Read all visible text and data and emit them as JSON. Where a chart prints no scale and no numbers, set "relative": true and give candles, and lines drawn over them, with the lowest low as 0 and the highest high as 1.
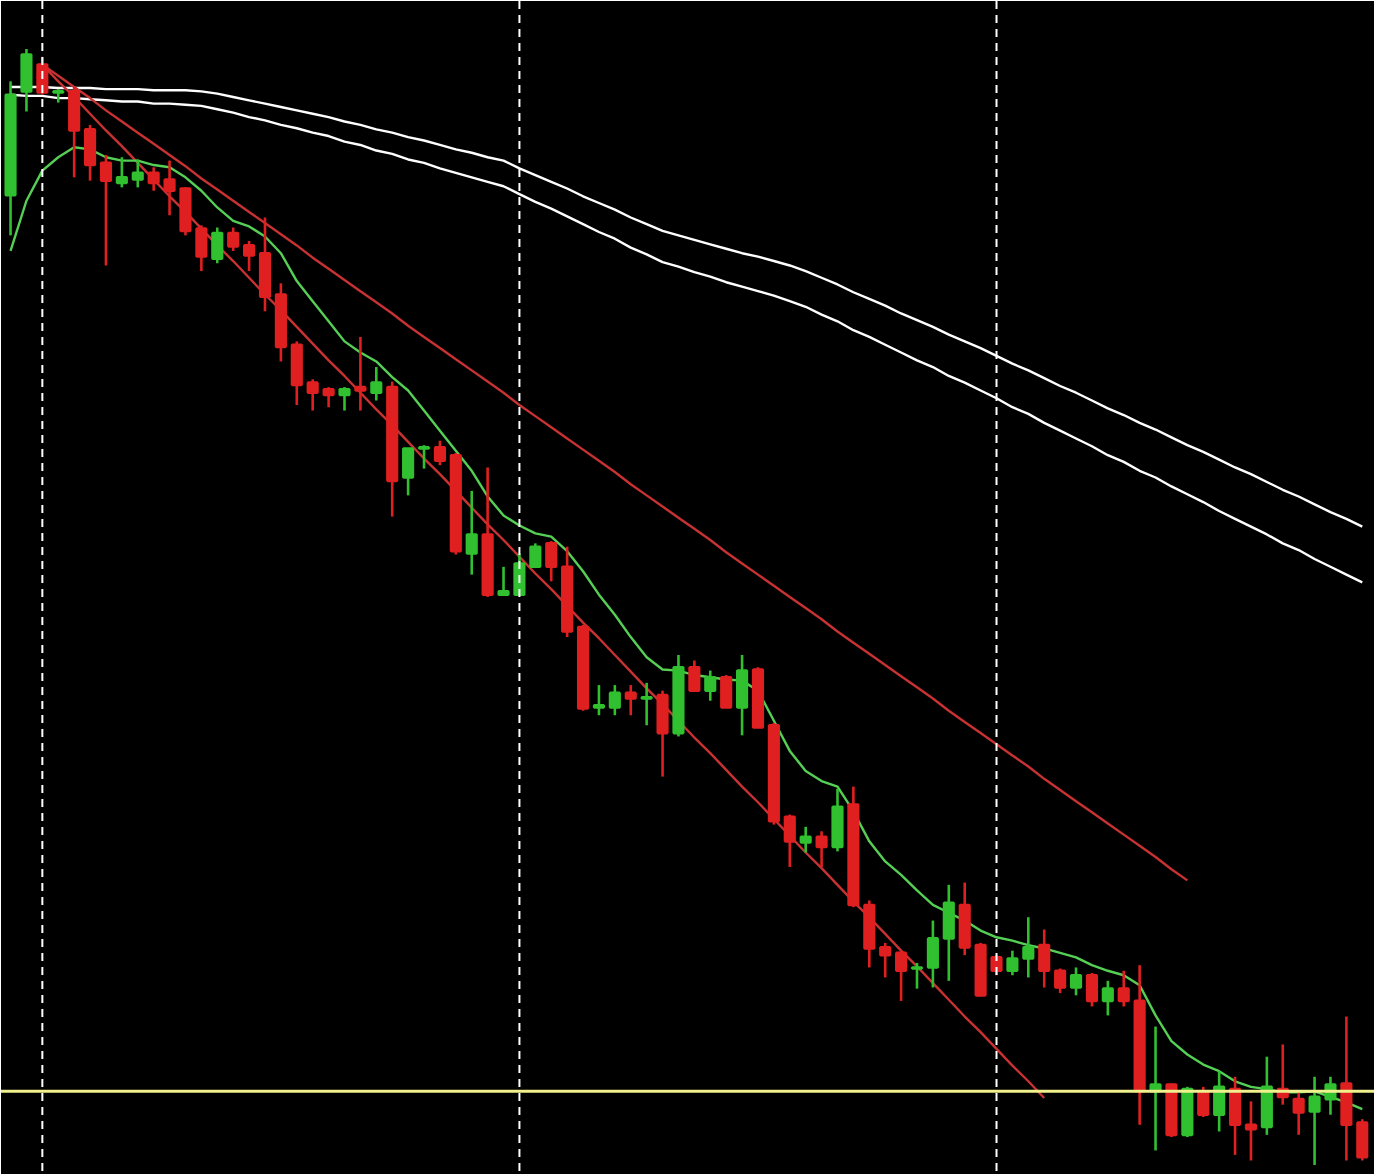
{
  "chart_data": {
    "type": "candlestick",
    "relative": true,
    "grid": "x",
    "categories": [
      null,
      null,
      null,
      null,
      null,
      null,
      null,
      null,
      null,
      null,
      null,
      null,
      null,
      null,
      null,
      null,
      null,
      null,
      null,
      null,
      null,
      null,
      null,
      null,
      null,
      null,
      null,
      null,
      null,
      null,
      null,
      null,
      null,
      null,
      null,
      null,
      null,
      null,
      null,
      null,
      null,
      null,
      null,
      null,
      null,
      null,
      null,
      null,
      null,
      null,
      null,
      null,
      null,
      null,
      null,
      null,
      null,
      null,
      null,
      null,
      null,
      null,
      null,
      null,
      null,
      null,
      null,
      null,
      null,
      null,
      null,
      null,
      null,
      null,
      null,
      null,
      null,
      null,
      null,
      null,
      null,
      null,
      null,
      null,
      null,
      null
    ],
    "ohlc": [
      [
        0.869,
        0.971,
        0.833,
        0.959
      ],
      [
        0.962,
        1,
        0.944,
        0.995
      ],
      [
        0.986,
        0.993,
        0.959,
        0.961
      ],
      [
        0.961,
        0.964,
        0.952,
        0.962
      ],
      [
        0.962,
        0.966,
        0.885,
        0.927
      ],
      [
        0.928,
        0.932,
        0.882,
        0.896
      ],
      [
        0.898,
        0.905,
        0.806,
        0.882
      ],
      [
        0.88,
        0.903,
        0.876,
        0.885
      ],
      [
        0.883,
        0.901,
        0.876,
        0.889
      ],
      [
        0.889,
        0.894,
        0.873,
        0.88
      ],
      [
        0.883,
        0.9,
        0.851,
        0.873
      ],
      [
        0.875,
        0.876,
        0.833,
        0.837
      ],
      [
        0.839,
        0.842,
        0.801,
        0.814
      ],
      [
        0.812,
        0.84,
        0.808,
        0.835
      ],
      [
        0.835,
        0.84,
        0.819,
        0.823
      ],
      [
        0.824,
        0.828,
        0.801,
        0.815
      ],
      [
        0.817,
        0.849,
        0.765,
        0.778
      ],
      [
        0.78,
        0.79,
        0.72,
        0.733
      ],
      [
        0.735,
        0.738,
        0.681,
        0.699
      ],
      [
        0.701,
        0.704,
        0.676,
        0.692
      ],
      [
        0.695,
        0.697,
        0.679,
        0.69
      ],
      [
        0.69,
        0.697,
        0.676,
        0.695
      ],
      [
        0.697,
        0.742,
        0.676,
        0.694
      ],
      [
        0.692,
        0.715,
        0.685,
        0.701
      ],
      [
        0.697,
        0.702,
        0.581,
        0.613
      ],
      [
        0.616,
        0.642,
        0.6,
        0.642
      ],
      [
        0.642,
        0.645,
        0.624,
        0.643
      ],
      [
        0.643,
        0.649,
        0.627,
        0.631
      ],
      [
        0.636,
        0.638,
        0.547,
        0.55
      ],
      [
        0.548,
        0.604,
        0.529,
        0.565
      ],
      [
        0.565,
        0.625,
        0.509,
        0.511
      ],
      [
        0.511,
        0.536,
        0.511,
        0.514
      ],
      [
        0.511,
        0.548,
        0.511,
        0.539
      ],
      [
        0.536,
        0.557,
        0.536,
        0.554
      ],
      [
        0.557,
        0.559,
        0.523,
        0.536
      ],
      [
        0.536,
        0.554,
        0.473,
        0.478
      ],
      [
        0.482,
        0.484,
        0.407,
        0.409
      ],
      [
        0.41,
        0.43,
        0.403,
        0.412
      ],
      [
        0.41,
        0.43,
        0.403,
        0.423
      ],
      [
        0.423,
        0.43,
        0.403,
        0.418
      ],
      [
        0.418,
        0.432,
        0.394,
        0.419
      ],
      [
        0.421,
        0.425,
        0.348,
        0.387
      ],
      [
        0.387,
        0.457,
        0.384,
        0.446
      ],
      [
        0.446,
        0.452,
        0.425,
        0.425
      ],
      [
        0.425,
        0.443,
        0.416,
        0.437
      ],
      [
        0.437,
        0.439,
        0.41,
        0.41
      ],
      [
        0.41,
        0.457,
        0.385,
        0.443
      ],
      [
        0.444,
        0.446,
        0.392,
        0.392
      ],
      [
        0.394,
        0.396,
        0.305,
        0.308
      ],
      [
        0.312,
        0.314,
        0.267,
        0.29
      ],
      [
        0.289,
        0.303,
        0.28,
        0.294
      ],
      [
        0.294,
        0.299,
        0.267,
        0.285
      ],
      [
        0.285,
        0.337,
        0.281,
        0.321
      ],
      [
        0.323,
        0.339,
        0.231,
        0.233
      ],
      [
        0.233,
        0.237,
        0.177,
        0.194
      ],
      [
        0.195,
        0.199,
        0.168,
        0.188
      ],
      [
        0.19,
        0.192,
        0.147,
        0.174
      ],
      [
        0.176,
        0.181,
        0.158,
        0.177
      ],
      [
        0.177,
        0.219,
        0.159,
        0.203
      ],
      [
        0.203,
        0.251,
        0.165,
        0.235
      ],
      [
        0.233,
        0.253,
        0.188,
        0.195
      ],
      [
        0.197,
        0.199,
        0.151,
        0.152
      ],
      [
        0.186,
        0.188,
        0.17,
        0.174
      ],
      [
        0.174,
        0.192,
        0.17,
        0.185
      ],
      [
        0.185,
        0.222,
        0.168,
        0.195
      ],
      [
        0.197,
        0.211,
        0.159,
        0.174
      ],
      [
        0.174,
        0.176,
        0.154,
        0.159
      ],
      [
        0.159,
        0.177,
        0.152,
        0.17
      ],
      [
        0.17,
        0.172,
        0.142,
        0.147
      ],
      [
        0.147,
        0.165,
        0.134,
        0.158
      ],
      [
        0.158,
        0.174,
        0.142,
        0.147
      ],
      [
        0.147,
        0.179,
        0.036,
        0.066
      ],
      [
        0.066,
        0.124,
        0.013,
        0.072
      ],
      [
        0.072,
        0.073,
        0.025,
        0.027
      ],
      [
        0.027,
        0.07,
        0.025,
        0.068
      ],
      [
        0.066,
        0.07,
        0.043,
        0.045
      ],
      [
        0.045,
        0.084,
        0.03,
        0.07
      ],
      [
        0.068,
        0.079,
        0.009,
        0.036
      ],
      [
        0.036,
        0.057,
        0.004,
        0.032
      ],
      [
        0.034,
        0.097,
        0.027,
        0.07
      ],
      [
        0.068,
        0.108,
        0.054,
        0.061
      ],
      [
        0.059,
        0.066,
        0.027,
        0.047
      ],
      [
        0.048,
        0.079,
        0,
        0.061
      ],
      [
        0.059,
        0.079,
        0.045,
        0.072
      ],
      [
        0.073,
        0.133,
        0.004,
        0.036
      ],
      [
        0.038,
        0.041,
        0.004,
        0.007
      ]
    ],
    "colors": [
      "#30c030",
      "#30c030",
      "#e02020",
      "#30c030",
      "#e02020",
      "#e02020",
      "#e02020",
      "#30c030",
      "#30c030",
      "#e02020",
      "#e02020",
      "#e02020",
      "#e02020",
      "#30c030",
      "#e02020",
      "#e02020",
      "#e02020",
      "#e02020",
      "#e02020",
      "#e02020",
      "#e02020",
      "#30c030",
      "#e02020",
      "#30c030",
      "#e02020",
      "#30c030",
      "#30c030",
      "#e02020",
      "#e02020",
      "#30c030",
      "#e02020",
      "#30c030",
      "#30c030",
      "#30c030",
      "#e02020",
      "#e02020",
      "#e02020",
      "#30c030",
      "#30c030",
      "#e02020",
      "#30c030",
      "#e02020",
      "#30c030",
      "#e02020",
      "#30c030",
      "#e02020",
      "#30c030",
      "#e02020",
      "#e02020",
      "#e02020",
      "#30c030",
      "#e02020",
      "#30c030",
      "#e02020",
      "#e02020",
      "#e02020",
      "#e02020",
      "#30c030",
      "#30c030",
      "#30c030",
      "#e02020",
      "#e02020",
      "#e02020",
      "#30c030",
      "#30c030",
      "#e02020",
      "#e02020",
      "#30c030",
      "#e02020",
      "#30c030",
      "#e02020",
      "#e02020",
      "#30c030",
      "#e02020",
      "#30c030",
      "#e02020",
      "#30c030",
      "#e02020",
      "#e02020",
      "#30c030",
      "#e02020",
      "#e02020",
      "#30c030",
      "#30c030",
      "#e02020",
      "#e02020"
    ],
    "series": [
      {
        "type": "line",
        "color": "#ffffff",
        "values": [
          0.966,
          0.966,
          0.966,
          0.965,
          0.965,
          0.965,
          0.964,
          0.964,
          0.964,
          0.963,
          0.963,
          0.963,
          0.962,
          0.96,
          0.957,
          0.954,
          0.951,
          0.948,
          0.945,
          0.942,
          0.939,
          0.935,
          0.932,
          0.928,
          0.925,
          0.921,
          0.918,
          0.914,
          0.91,
          0.907,
          0.903,
          0.9,
          0.893,
          0.887,
          0.881,
          0.875,
          0.868,
          0.862,
          0.856,
          0.849,
          0.843,
          0.837,
          0.833,
          0.829,
          0.825,
          0.821,
          0.817,
          0.814,
          0.81,
          0.806,
          0.801,
          0.795,
          0.789,
          0.782,
          0.776,
          0.77,
          0.763,
          0.757,
          0.751,
          0.744,
          0.738,
          0.732,
          0.725,
          0.718,
          0.712,
          0.705,
          0.698,
          0.692,
          0.685,
          0.678,
          0.672,
          0.665,
          0.659,
          0.652,
          0.645,
          0.639,
          0.632,
          0.625,
          0.619,
          0.612,
          0.605,
          0.599,
          0.592,
          0.585,
          0.579,
          0.572
        ]
      },
      {
        "type": "line",
        "color": "#ffffff",
        "values": [
          0.959,
          0.958,
          0.958,
          0.956,
          0.956,
          0.955,
          0.954,
          0.953,
          0.953,
          0.951,
          0.951,
          0.95,
          0.949,
          0.946,
          0.943,
          0.939,
          0.936,
          0.932,
          0.929,
          0.925,
          0.922,
          0.917,
          0.914,
          0.909,
          0.906,
          0.901,
          0.898,
          0.893,
          0.889,
          0.885,
          0.881,
          0.877,
          0.87,
          0.863,
          0.857,
          0.85,
          0.843,
          0.836,
          0.83,
          0.822,
          0.816,
          0.809,
          0.805,
          0.8,
          0.796,
          0.791,
          0.787,
          0.783,
          0.779,
          0.774,
          0.769,
          0.762,
          0.756,
          0.748,
          0.742,
          0.735,
          0.728,
          0.721,
          0.715,
          0.707,
          0.701,
          0.694,
          0.687,
          0.679,
          0.673,
          0.665,
          0.658,
          0.651,
          0.644,
          0.636,
          0.63,
          0.622,
          0.616,
          0.608,
          0.601,
          0.594,
          0.586,
          0.579,
          0.572,
          0.565,
          0.557,
          0.551,
          0.543,
          0.536,
          0.529,
          0.522
        ]
      },
      {
        "type": "line",
        "color": "#c83232",
        "values": [
          null,
          null,
          0.986,
          0.976,
          0.966,
          0.956,
          0.945,
          0.935,
          0.925,
          0.915,
          0.905,
          0.895,
          0.884,
          0.874,
          0.864,
          0.854,
          0.844,
          0.834,
          0.824,
          0.813,
          0.803,
          0.793,
          0.783,
          0.773,
          0.763,
          0.752,
          0.742,
          0.732,
          0.722,
          0.712,
          0.702,
          0.692,
          0.681,
          0.671,
          0.661,
          0.651,
          0.641,
          0.631,
          0.621,
          0.61,
          0.6,
          0.59,
          0.58,
          0.57,
          0.56,
          0.549,
          0.539,
          0.529,
          0.519,
          0.509,
          0.499,
          0.489,
          0.478,
          0.468,
          0.458,
          0.448,
          0.438,
          0.428,
          0.418,
          0.407,
          0.397,
          0.387,
          0.377,
          0.367,
          0.357,
          0.346,
          0.336,
          0.326,
          0.316,
          0.306,
          0.296,
          0.286,
          0.276,
          0.265,
          0.255,
          null,
          null,
          null,
          null,
          null,
          null,
          null,
          null,
          null,
          null,
          null
        ]
      },
      {
        "type": "line",
        "color": "#c83232",
        "values": [
          null,
          null,
          0.986,
          0.971,
          0.957,
          0.942,
          0.927,
          0.913,
          0.898,
          0.883,
          0.868,
          0.854,
          0.839,
          0.824,
          0.81,
          0.795,
          0.78,
          0.766,
          0.751,
          0.736,
          0.721,
          0.707,
          0.692,
          0.677,
          0.663,
          0.648,
          0.633,
          0.619,
          0.604,
          0.589,
          0.574,
          0.56,
          0.545,
          0.53,
          0.516,
          0.501,
          0.486,
          0.472,
          0.457,
          0.442,
          0.427,
          0.413,
          0.398,
          0.383,
          0.369,
          0.354,
          0.339,
          0.325,
          0.31,
          0.295,
          0.28,
          0.266,
          0.251,
          0.236,
          0.222,
          0.207,
          0.192,
          0.178,
          0.163,
          0.148,
          0.133,
          0.119,
          0.104,
          0.089,
          0.075,
          0.06,
          null,
          null,
          null,
          null,
          null,
          null,
          null,
          null,
          null,
          null,
          null,
          null,
          null,
          null,
          null,
          null,
          null,
          null,
          null,
          null
        ]
      },
      {
        "type": "line",
        "color": "#55d055",
        "values": [
          0.819,
          0.864,
          0.891,
          0.903,
          0.912,
          0.91,
          0.903,
          0.9,
          0.9,
          0.896,
          0.894,
          0.885,
          0.873,
          0.858,
          0.846,
          0.841,
          0.832,
          0.817,
          0.792,
          0.774,
          0.756,
          0.738,
          0.728,
          0.72,
          0.706,
          0.694,
          0.676,
          0.658,
          0.64,
          0.622,
          0.599,
          0.582,
          0.573,
          0.566,
          0.563,
          0.55,
          0.532,
          0.511,
          0.493,
          0.473,
          0.455,
          0.444,
          0.443,
          0.439,
          0.437,
          0.435,
          0.434,
          0.425,
          0.398,
          0.371,
          0.353,
          0.344,
          0.339,
          0.317,
          0.29,
          0.272,
          0.26,
          0.246,
          0.233,
          0.226,
          0.219,
          0.21,
          0.204,
          0.201,
          0.197,
          0.194,
          0.19,
          0.186,
          0.179,
          0.174,
          0.17,
          0.161,
          0.134,
          0.111,
          0.099,
          0.09,
          0.084,
          0.075,
          0.07,
          0.068,
          0.065,
          0.065,
          0.066,
          0.061,
          0.056,
          0.05
        ]
      }
    ],
    "ref_lines": [
      {
        "axis": "y",
        "value": 0.066,
        "color": "#f0f08c",
        "line_style": "solid"
      }
    ]
  }
}
